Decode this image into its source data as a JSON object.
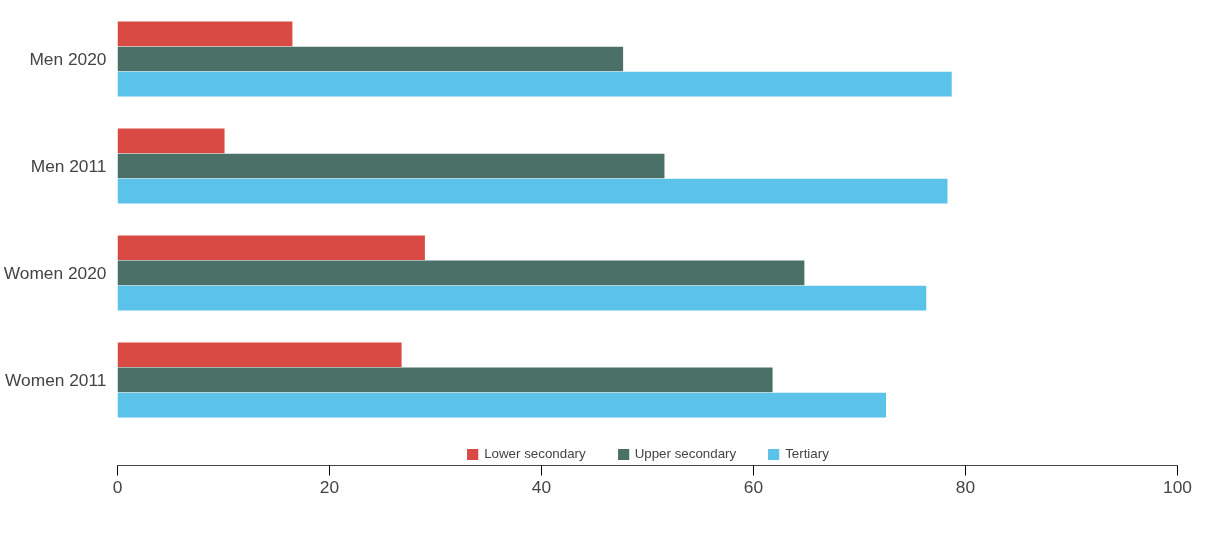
{
  "chart_data": {
    "type": "bar",
    "orientation": "horizontal",
    "categories": [
      "Men 2020",
      "Men 2011",
      "Women 2020",
      "Women 2011"
    ],
    "series": [
      {
        "name": "Lower secondary",
        "color": "#d94a45",
        "values": [
          16.5,
          10.1,
          29.0,
          26.8
        ]
      },
      {
        "name": "Upper secondary",
        "color": "#4a7068",
        "values": [
          47.7,
          51.6,
          64.8,
          61.8
        ]
      },
      {
        "name": "Tertiary",
        "color": "#5bc2e9",
        "values": [
          78.7,
          78.3,
          76.3,
          72.5
        ]
      }
    ],
    "xlim": [
      0,
      100
    ],
    "xticks": [
      0,
      20,
      40,
      60,
      80,
      100
    ],
    "grid": false,
    "legend": "bottom"
  }
}
